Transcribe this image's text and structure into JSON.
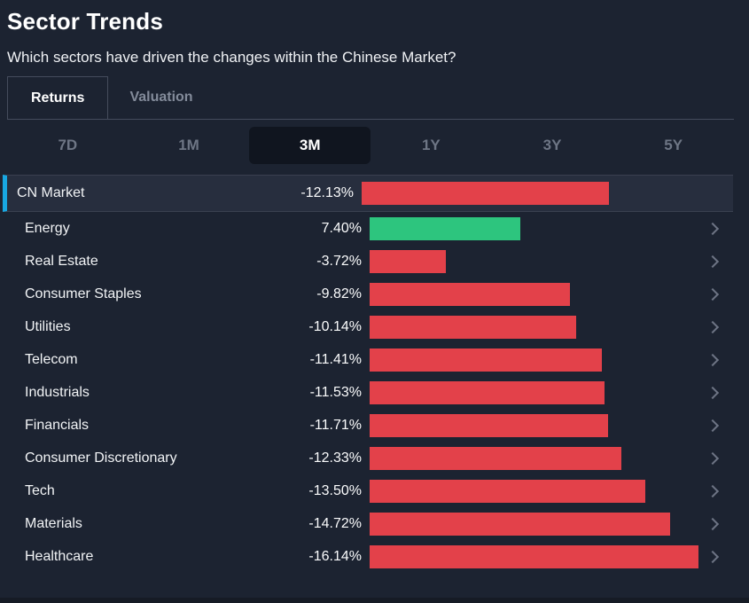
{
  "header": {
    "title": "Sector Trends",
    "subtitle": "Which sectors have driven the changes within the Chinese Market?"
  },
  "tabs": [
    {
      "label": "Returns",
      "active": true
    },
    {
      "label": "Valuation",
      "active": false
    }
  ],
  "periods": [
    {
      "label": "7D",
      "active": false
    },
    {
      "label": "1M",
      "active": false
    },
    {
      "label": "3M",
      "active": true
    },
    {
      "label": "1Y",
      "active": false
    },
    {
      "label": "3Y",
      "active": false
    },
    {
      "label": "5Y",
      "active": false
    }
  ],
  "rows": [
    {
      "label": "CN Market",
      "value": "-12.13%",
      "num": -12.13,
      "highlight": true,
      "chevron": false
    },
    {
      "label": "Energy",
      "value": "7.40%",
      "num": 7.4,
      "highlight": false,
      "chevron": true
    },
    {
      "label": "Real Estate",
      "value": "-3.72%",
      "num": -3.72,
      "highlight": false,
      "chevron": true
    },
    {
      "label": "Consumer Staples",
      "value": "-9.82%",
      "num": -9.82,
      "highlight": false,
      "chevron": true
    },
    {
      "label": "Utilities",
      "value": "-10.14%",
      "num": -10.14,
      "highlight": false,
      "chevron": true
    },
    {
      "label": "Telecom",
      "value": "-11.41%",
      "num": -11.41,
      "highlight": false,
      "chevron": true
    },
    {
      "label": "Industrials",
      "value": "-11.53%",
      "num": -11.53,
      "highlight": false,
      "chevron": true
    },
    {
      "label": "Financials",
      "value": "-11.71%",
      "num": -11.71,
      "highlight": false,
      "chevron": true
    },
    {
      "label": "Consumer Discretionary",
      "value": "-12.33%",
      "num": -12.33,
      "highlight": false,
      "chevron": true
    },
    {
      "label": "Tech",
      "value": "-13.50%",
      "num": -13.5,
      "highlight": false,
      "chevron": true
    },
    {
      "label": "Materials",
      "value": "-14.72%",
      "num": -14.72,
      "highlight": false,
      "chevron": true
    },
    {
      "label": "Healthcare",
      "value": "-16.14%",
      "num": -16.14,
      "highlight": false,
      "chevron": true
    }
  ],
  "chart_data": {
    "type": "bar",
    "orientation": "horizontal",
    "title": "Sector Trends",
    "subtitle": "Which sectors have driven the changes within the Chinese Market?",
    "period": "3M",
    "metric": "Returns",
    "unit": "%",
    "categories": [
      "CN Market",
      "Energy",
      "Real Estate",
      "Consumer Staples",
      "Utilities",
      "Telecom",
      "Industrials",
      "Financials",
      "Consumer Discretionary",
      "Tech",
      "Materials",
      "Healthcare"
    ],
    "values": [
      -12.13,
      7.4,
      -3.72,
      -9.82,
      -10.14,
      -11.41,
      -11.53,
      -11.71,
      -12.33,
      -13.5,
      -14.72,
      -16.14
    ],
    "value_axis_range": [
      0,
      16.14
    ],
    "grid": false,
    "legend": false,
    "bar_length_encodes": "absolute value"
  },
  "colors": {
    "positive": "#2dc57e",
    "negative": "#e3414a",
    "accent_blue": "#18a7e2",
    "background": "#1c2331",
    "highlight_row": "#272e3e",
    "active_pill": "#10151f"
  },
  "icons": {
    "chevron_right": "chevron-right"
  }
}
